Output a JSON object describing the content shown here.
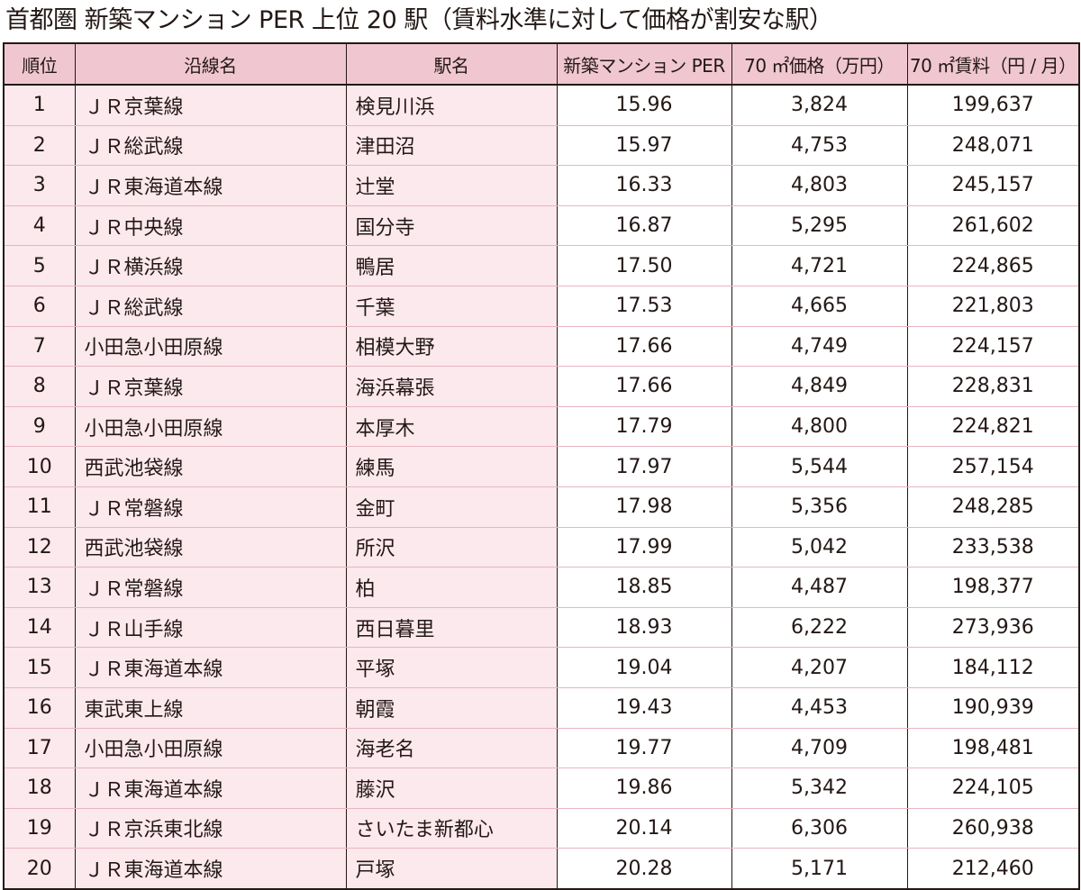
{
  "title": "首都圏 新築マンション PER 上位 20 駅（賃料水準に対して価格が割安な駅）",
  "columns": {
    "rank": "順位",
    "line": "沿線名",
    "station": "駅名",
    "per": "新築マンション PER",
    "price": "70 ㎡価格（万円）",
    "rent": "70 ㎡賃料（円 / 月）"
  },
  "accent_colors": {
    "header_bg": "#f0c7d1",
    "row_tint": "#fbe9ed",
    "row_rule": "#e8b5c0",
    "border": "#231815"
  },
  "rows": [
    {
      "rank": "1",
      "line": "ＪＲ京葉線",
      "station": "検見川浜",
      "per": "15.96",
      "price": "3,824",
      "rent": "199,637"
    },
    {
      "rank": "2",
      "line": "ＪＲ総武線",
      "station": "津田沼",
      "per": "15.97",
      "price": "4,753",
      "rent": "248,071"
    },
    {
      "rank": "3",
      "line": "ＪＲ東海道本線",
      "station": "辻堂",
      "per": "16.33",
      "price": "4,803",
      "rent": "245,157"
    },
    {
      "rank": "4",
      "line": "ＪＲ中央線",
      "station": "国分寺",
      "per": "16.87",
      "price": "5,295",
      "rent": "261,602"
    },
    {
      "rank": "5",
      "line": "ＪＲ横浜線",
      "station": "鴨居",
      "per": "17.50",
      "price": "4,721",
      "rent": "224,865"
    },
    {
      "rank": "6",
      "line": "ＪＲ総武線",
      "station": "千葉",
      "per": "17.53",
      "price": "4,665",
      "rent": "221,803"
    },
    {
      "rank": "7",
      "line": "小田急小田原線",
      "station": "相模大野",
      "per": "17.66",
      "price": "4,749",
      "rent": "224,157"
    },
    {
      "rank": "8",
      "line": "ＪＲ京葉線",
      "station": "海浜幕張",
      "per": "17.66",
      "price": "4,849",
      "rent": "228,831"
    },
    {
      "rank": "9",
      "line": "小田急小田原線",
      "station": "本厚木",
      "per": "17.79",
      "price": "4,800",
      "rent": "224,821"
    },
    {
      "rank": "10",
      "line": "西武池袋線",
      "station": "練馬",
      "per": "17.97",
      "price": "5,544",
      "rent": "257,154"
    },
    {
      "rank": "11",
      "line": "ＪＲ常磐線",
      "station": "金町",
      "per": "17.98",
      "price": "5,356",
      "rent": "248,285"
    },
    {
      "rank": "12",
      "line": "西武池袋線",
      "station": "所沢",
      "per": "17.99",
      "price": "5,042",
      "rent": "233,538"
    },
    {
      "rank": "13",
      "line": "ＪＲ常磐線",
      "station": "柏",
      "per": "18.85",
      "price": "4,487",
      "rent": "198,377"
    },
    {
      "rank": "14",
      "line": "ＪＲ山手線",
      "station": "西日暮里",
      "per": "18.93",
      "price": "6,222",
      "rent": "273,936"
    },
    {
      "rank": "15",
      "line": "ＪＲ東海道本線",
      "station": "平塚",
      "per": "19.04",
      "price": "4,207",
      "rent": "184,112"
    },
    {
      "rank": "16",
      "line": "東武東上線",
      "station": "朝霞",
      "per": "19.43",
      "price": "4,453",
      "rent": "190,939"
    },
    {
      "rank": "17",
      "line": "小田急小田原線",
      "station": "海老名",
      "per": "19.77",
      "price": "4,709",
      "rent": "198,481"
    },
    {
      "rank": "18",
      "line": "ＪＲ東海道本線",
      "station": "藤沢",
      "per": "19.86",
      "price": "5,342",
      "rent": "224,105"
    },
    {
      "rank": "19",
      "line": "ＪＲ京浜東北線",
      "station": "さいたま新都心",
      "per": "20.14",
      "price": "6,306",
      "rent": "260,938"
    },
    {
      "rank": "20",
      "line": "ＪＲ東海道本線",
      "station": "戸塚",
      "per": "20.28",
      "price": "5,171",
      "rent": "212,460"
    }
  ]
}
